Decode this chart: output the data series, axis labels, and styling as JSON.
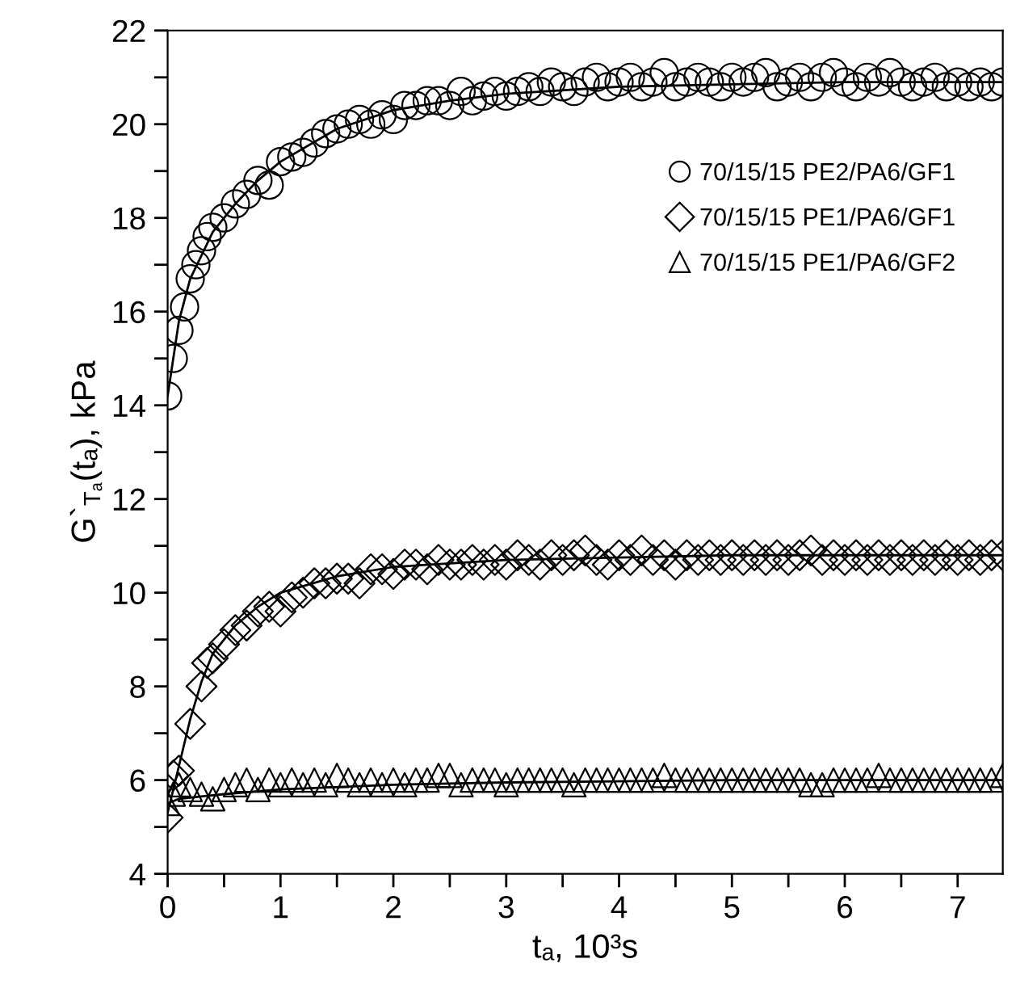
{
  "chart_data": {
    "type": "scatter",
    "xlabel": "tₐ, 10³s",
    "ylabel": "G`$_{Tₐ}$(tₐ), kPa",
    "xlim": [
      0,
      7.4
    ],
    "ylim": [
      4,
      22
    ],
    "xticks": [
      0,
      {
        "value": 0.5,
        "label": null
      },
      1,
      {
        "value": 1.5,
        "label": null
      },
      2,
      {
        "value": 2.5,
        "label": null
      },
      3,
      {
        "value": 3.5,
        "label": null
      },
      4,
      {
        "value": 4.5,
        "label": null
      },
      5,
      {
        "value": 5.5,
        "label": null
      },
      6,
      {
        "value": 6.5,
        "label": null
      },
      7
    ],
    "yticks": [
      4,
      {
        "value": 5,
        "label": null
      },
      6,
      {
        "value": 7,
        "label": null
      },
      8,
      {
        "value": 9,
        "label": null
      },
      10,
      {
        "value": 11,
        "label": null
      },
      12,
      {
        "value": 13,
        "label": null
      },
      14,
      {
        "value": 15,
        "label": null
      },
      16,
      {
        "value": 17,
        "label": null
      },
      18,
      {
        "value": 19,
        "label": null
      },
      20,
      {
        "value": 21,
        "label": null
      },
      22
    ],
    "grid": false,
    "legend": "top right",
    "series": [
      {
        "name": "70/15/15 PE2/PA6/GF1",
        "color": "#000000",
        "marker": "circle",
        "x": [
          0,
          0.05,
          0.1,
          0.15,
          0.2,
          0.25,
          0.3,
          0.35,
          0.4,
          0.5,
          0.6,
          0.7,
          0.8,
          0.9,
          1.0,
          1.1,
          1.2,
          1.3,
          1.4,
          1.5,
          1.6,
          1.7,
          1.8,
          1.9,
          2.0,
          2.1,
          2.2,
          2.3,
          2.4,
          2.5,
          2.6,
          2.7,
          2.8,
          2.9,
          3.0,
          3.1,
          3.2,
          3.3,
          3.4,
          3.5,
          3.6,
          3.7,
          3.8,
          3.9,
          4.0,
          4.1,
          4.2,
          4.3,
          4.4,
          4.5,
          4.6,
          4.7,
          4.8,
          4.9,
          5.0,
          5.1,
          5.2,
          5.3,
          5.4,
          5.5,
          5.6,
          5.7,
          5.8,
          5.9,
          6.0,
          6.1,
          6.2,
          6.3,
          6.4,
          6.5,
          6.6,
          6.7,
          6.8,
          6.9,
          7.0,
          7.1,
          7.2,
          7.3,
          7.4
        ],
        "values": [
          14.2,
          15.0,
          15.6,
          16.1,
          16.7,
          17.0,
          17.3,
          17.6,
          17.8,
          18.0,
          18.3,
          18.5,
          18.8,
          18.7,
          19.2,
          19.3,
          19.4,
          19.6,
          19.8,
          19.9,
          20.0,
          20.1,
          20.0,
          20.2,
          20.1,
          20.4,
          20.4,
          20.5,
          20.5,
          20.4,
          20.7,
          20.5,
          20.6,
          20.7,
          20.6,
          20.7,
          20.8,
          20.7,
          20.9,
          20.8,
          20.7,
          20.9,
          21.0,
          20.8,
          20.9,
          21.0,
          20.8,
          20.9,
          21.1,
          20.8,
          20.9,
          21.0,
          20.9,
          20.8,
          21.0,
          20.9,
          21.0,
          21.1,
          20.8,
          20.9,
          21.0,
          20.8,
          21.0,
          21.1,
          20.9,
          20.8,
          21.0,
          20.9,
          21.1,
          20.9,
          20.8,
          20.9,
          21.0,
          20.8,
          20.9,
          20.8,
          20.9,
          20.8,
          20.9
        ]
      },
      {
        "name": "70/15/15 PE1/PA6/GF1",
        "color": "#000000",
        "marker": "diamond",
        "x": [
          0,
          0.05,
          0.1,
          0.2,
          0.3,
          0.35,
          0.4,
          0.5,
          0.6,
          0.7,
          0.8,
          0.9,
          1.0,
          1.1,
          1.2,
          1.3,
          1.4,
          1.5,
          1.6,
          1.7,
          1.8,
          1.9,
          2.0,
          2.1,
          2.2,
          2.3,
          2.4,
          2.5,
          2.6,
          2.7,
          2.8,
          2.9,
          3.0,
          3.1,
          3.2,
          3.3,
          3.4,
          3.5,
          3.6,
          3.7,
          3.8,
          3.9,
          4.0,
          4.1,
          4.2,
          4.3,
          4.4,
          4.5,
          4.6,
          4.7,
          4.8,
          4.9,
          5.0,
          5.1,
          5.2,
          5.3,
          5.4,
          5.5,
          5.6,
          5.7,
          5.8,
          5.9,
          6.0,
          6.1,
          6.2,
          6.3,
          6.4,
          6.5,
          6.6,
          6.7,
          6.8,
          6.9,
          7.0,
          7.1,
          7.2,
          7.3,
          7.4
        ],
        "values": [
          5.2,
          6.1,
          6.2,
          7.2,
          8.0,
          8.5,
          8.6,
          8.9,
          9.2,
          9.3,
          9.6,
          9.7,
          9.6,
          9.9,
          10.0,
          10.2,
          10.2,
          10.3,
          10.3,
          10.2,
          10.5,
          10.5,
          10.4,
          10.6,
          10.6,
          10.5,
          10.7,
          10.6,
          10.6,
          10.7,
          10.6,
          10.7,
          10.6,
          10.8,
          10.7,
          10.6,
          10.8,
          10.7,
          10.8,
          10.9,
          10.7,
          10.6,
          10.8,
          10.7,
          10.9,
          10.7,
          10.8,
          10.6,
          10.8,
          10.7,
          10.8,
          10.7,
          10.8,
          10.7,
          10.8,
          10.7,
          10.8,
          10.7,
          10.8,
          10.9,
          10.7,
          10.8,
          10.7,
          10.8,
          10.7,
          10.8,
          10.7,
          10.8,
          10.7,
          10.8,
          10.7,
          10.8,
          10.7,
          10.8,
          10.7,
          10.8,
          10.8
        ]
      },
      {
        "name": "70/15/15 PE1/PA6/GF2",
        "color": "#000000",
        "marker": "triangle",
        "x": [
          0,
          0.05,
          0.1,
          0.2,
          0.3,
          0.4,
          0.5,
          0.6,
          0.7,
          0.8,
          0.9,
          1.0,
          1.1,
          1.2,
          1.3,
          1.4,
          1.5,
          1.6,
          1.7,
          1.8,
          1.9,
          2.0,
          2.1,
          2.2,
          2.3,
          2.4,
          2.5,
          2.6,
          2.7,
          2.8,
          2.9,
          3.0,
          3.1,
          3.2,
          3.3,
          3.4,
          3.5,
          3.6,
          3.7,
          3.8,
          3.9,
          4.0,
          4.1,
          4.2,
          4.3,
          4.4,
          4.5,
          4.6,
          4.7,
          4.8,
          4.9,
          5.0,
          5.1,
          5.2,
          5.3,
          5.4,
          5.5,
          5.6,
          5.7,
          5.8,
          5.9,
          6.0,
          6.1,
          6.2,
          6.3,
          6.4,
          6.5,
          6.6,
          6.7,
          6.8,
          6.9,
          7.0,
          7.1,
          7.2,
          7.3,
          7.4
        ],
        "values": [
          5.5,
          5.7,
          5.9,
          5.8,
          5.7,
          5.6,
          5.8,
          5.9,
          6.0,
          5.8,
          6.0,
          5.9,
          6.0,
          5.9,
          6.0,
          5.9,
          6.1,
          6.0,
          5.9,
          6.0,
          5.9,
          6.0,
          5.9,
          6.0,
          6.0,
          6.1,
          6.1,
          5.9,
          6.0,
          6.0,
          6.0,
          5.9,
          6.0,
          6.0,
          6.0,
          6.0,
          6.0,
          5.9,
          6.0,
          6.0,
          6.0,
          6.0,
          6.0,
          6.0,
          6.0,
          6.1,
          6.0,
          6.0,
          6.0,
          6.0,
          6.0,
          6.0,
          6.0,
          6.0,
          6.0,
          6.0,
          6.0,
          6.0,
          5.9,
          5.9,
          6.0,
          6.0,
          6.0,
          6.0,
          6.1,
          6.0,
          6.0,
          6.0,
          6.0,
          6.0,
          6.0,
          6.0,
          6.0,
          6.0,
          6.0,
          6.1
        ]
      },
      {
        "type": "line",
        "color": "#000000",
        "x": [
          0,
          0.1,
          0.2,
          0.4,
          0.6,
          0.8,
          1.0,
          1.5,
          2.0,
          2.5,
          3.0,
          4.0,
          5.0,
          6.0,
          7.4
        ],
        "values": [
          14.2,
          15.8,
          16.7,
          17.7,
          18.3,
          18.8,
          19.2,
          19.9,
          20.3,
          20.5,
          20.65,
          20.8,
          20.85,
          20.9,
          20.9
        ]
      },
      {
        "type": "line",
        "color": "#000000",
        "x": [
          0,
          0.1,
          0.2,
          0.3,
          0.4,
          0.6,
          0.8,
          1.0,
          1.5,
          2.0,
          3.0,
          4.0,
          5.0,
          7.4
        ],
        "values": [
          5.3,
          6.3,
          7.3,
          8.1,
          8.7,
          9.3,
          9.7,
          10.0,
          10.35,
          10.55,
          10.7,
          10.75,
          10.8,
          10.8
        ]
      },
      {
        "type": "line",
        "color": "#000000",
        "x": [
          0,
          0.1,
          0.5,
          1.0,
          2.0,
          3.0,
          5.0,
          7.4
        ],
        "values": [
          5.5,
          5.6,
          5.7,
          5.8,
          5.9,
          5.95,
          6.0,
          6.0
        ]
      }
    ]
  }
}
